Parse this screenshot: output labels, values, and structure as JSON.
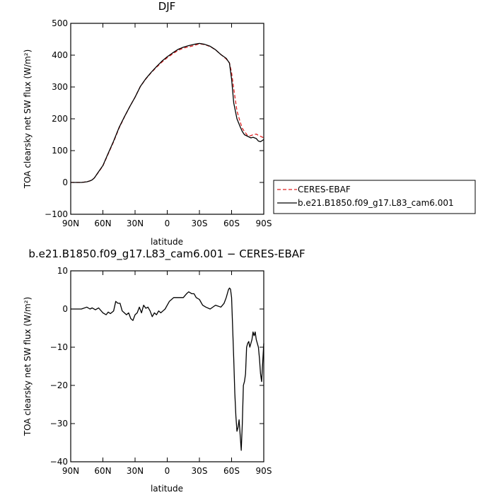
{
  "chart_data": [
    {
      "type": "line",
      "title": "DJF",
      "xlabel": "latitude",
      "ylabel": "TOA clearsky net SW flux (W/m²)",
      "x_tick_labels": [
        "90N",
        "60N",
        "30N",
        "0",
        "30S",
        "60S",
        "90S"
      ],
      "x_ticks": [
        90,
        60,
        30,
        0,
        -30,
        -60,
        -90
      ],
      "xlim": [
        90,
        -90
      ],
      "y_ticks": [
        -100,
        0,
        100,
        200,
        300,
        400,
        500
      ],
      "ylim": [
        -100,
        500
      ],
      "grid": false,
      "legend_position": "right",
      "series": [
        {
          "name": "CERES-EBAF",
          "color": "#dd2222",
          "style": "dashed",
          "x": [
            90,
            85,
            80,
            75,
            72,
            70,
            68,
            65,
            60,
            55,
            50,
            45,
            40,
            35,
            30,
            25,
            20,
            15,
            10,
            5,
            0,
            -5,
            -10,
            -15,
            -20,
            -25,
            -30,
            -35,
            -40,
            -45,
            -50,
            -55,
            -58,
            -60,
            -62,
            -65,
            -68,
            -70,
            -72,
            -75,
            -78,
            -80,
            -83,
            -85,
            -87,
            -90
          ],
          "y": [
            0,
            0,
            0,
            2,
            5,
            8,
            14,
            28,
            52,
            90,
            128,
            170,
            205,
            238,
            268,
            302,
            325,
            345,
            362,
            378,
            392,
            404,
            415,
            422,
            426,
            430,
            436,
            433,
            427,
            417,
            402,
            388,
            376,
            345,
            295,
            225,
            190,
            170,
            160,
            147,
            147,
            150,
            152,
            148,
            145,
            140
          ]
        },
        {
          "name": "b.e21.B1850.f09_g17.L83_cam6.001",
          "color": "#000000",
          "style": "solid",
          "x": [
            90,
            85,
            80,
            75,
            72,
            70,
            68,
            65,
            60,
            55,
            50,
            45,
            40,
            35,
            30,
            25,
            20,
            15,
            10,
            5,
            0,
            -5,
            -10,
            -15,
            -20,
            -25,
            -30,
            -35,
            -40,
            -45,
            -50,
            -55,
            -58,
            -60,
            -62,
            -65,
            -68,
            -70,
            -72,
            -75,
            -78,
            -80,
            -83,
            -85,
            -87,
            -90
          ],
          "y": [
            0,
            0,
            0,
            2,
            5,
            8,
            14,
            29,
            53,
            92,
            130,
            172,
            206,
            238,
            268,
            302,
            326,
            346,
            364,
            381,
            395,
            407,
            418,
            425,
            430,
            434,
            437,
            434,
            428,
            417,
            402,
            390,
            375,
            325,
            250,
            200,
            175,
            160,
            150,
            145,
            140,
            142,
            138,
            130,
            128,
            135
          ]
        }
      ]
    },
    {
      "type": "line",
      "title": "b.e21.B1850.f09_g17.L83_cam6.001 − CERES-EBAF",
      "xlabel": "latitude",
      "ylabel": "TOA clearsky net SW flux (W/m²)",
      "x_tick_labels": [
        "90N",
        "60N",
        "30N",
        "0",
        "30S",
        "60S",
        "90S"
      ],
      "x_ticks": [
        90,
        60,
        30,
        0,
        -30,
        -60,
        -90
      ],
      "xlim": [
        90,
        -90
      ],
      "y_ticks": [
        -40,
        -30,
        -20,
        -10,
        0,
        10
      ],
      "ylim": [
        -40,
        10
      ],
      "grid": false,
      "series": [
        {
          "color": "#000000",
          "style": "solid",
          "x": [
            90,
            80,
            75,
            72,
            70,
            67,
            64,
            60,
            57,
            55,
            53,
            50,
            48,
            46,
            44,
            42,
            40,
            38,
            36,
            34,
            32,
            30,
            28,
            26,
            24,
            22,
            20,
            18,
            16,
            14,
            12,
            10,
            8,
            6,
            4,
            2,
            0,
            -2,
            -4,
            -6,
            -8,
            -10,
            -12,
            -15,
            -18,
            -20,
            -23,
            -25,
            -27,
            -30,
            -33,
            -36,
            -40,
            -45,
            -50,
            -53,
            -55,
            -57,
            -58,
            -59,
            -60,
            -61,
            -62,
            -63,
            -64,
            -65,
            -66,
            -67,
            -68,
            -69,
            -70,
            -71,
            -72,
            -73,
            -74,
            -75,
            -76,
            -77,
            -78,
            -79,
            -80,
            -81,
            -82,
            -83,
            -84,
            -85,
            -86,
            -87,
            -88,
            -89,
            -90
          ],
          "y": [
            0,
            0,
            0.5,
            0,
            0.3,
            -0.2,
            0.3,
            -1,
            -1.5,
            -0.8,
            -1.2,
            -0.5,
            2,
            1.5,
            1.5,
            -0.5,
            -1,
            -1.5,
            -1,
            -2.5,
            -3,
            -1.5,
            -1,
            0.5,
            -1,
            1,
            0.2,
            0.5,
            -0.5,
            -2,
            -1,
            -1.5,
            -0.5,
            -1,
            -0.5,
            0,
            1,
            2,
            2.5,
            3,
            3,
            3,
            3,
            3,
            4,
            4.5,
            4,
            4,
            3,
            2.5,
            1,
            0.5,
            0,
            1,
            0.5,
            1.5,
            3,
            5,
            5.5,
            5.2,
            3,
            -5,
            -13,
            -22,
            -28,
            -32,
            -31,
            -29,
            -33,
            -37,
            -30,
            -20,
            -19,
            -17,
            -10,
            -9,
            -8.5,
            -10,
            -9,
            -8,
            -6,
            -7,
            -6,
            -8,
            -9,
            -10,
            -13,
            -17,
            -19,
            -14,
            -9
          ]
        }
      ]
    }
  ]
}
